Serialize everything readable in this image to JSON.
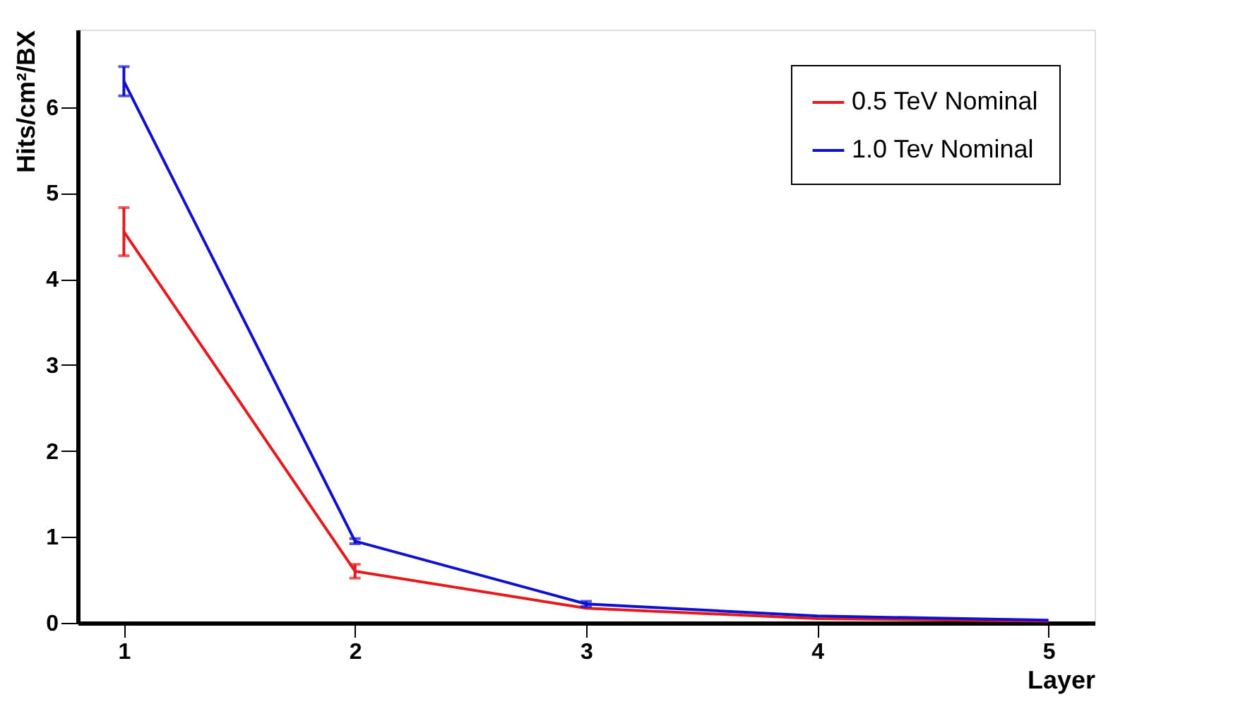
{
  "chart_data": {
    "type": "line",
    "xlabel": "Layer",
    "ylabel": "Hits/cm²/BX",
    "x": [
      1,
      2,
      3,
      4,
      5
    ],
    "xlim": [
      0.8,
      5.2
    ],
    "xticks": [
      1,
      2,
      3,
      4,
      5
    ],
    "ylim": [
      0,
      6.9
    ],
    "yticks": [
      0,
      1,
      2,
      3,
      4,
      5,
      6
    ],
    "series": [
      {
        "name": "0.5 TeV Nominal",
        "color": "#e41a1c",
        "values": [
          4.55,
          0.6,
          0.17,
          0.05,
          0.02
        ],
        "errors": [
          0.28,
          0.08,
          null,
          null,
          null
        ]
      },
      {
        "name": "1.0 Tev Nominal",
        "color": "#1010d0",
        "values": [
          6.3,
          0.95,
          0.22,
          0.08,
          0.03
        ],
        "errors": [
          0.17,
          0.03,
          0.03,
          null,
          null
        ]
      }
    ],
    "legend": "top right",
    "grid": false,
    "marker": "none",
    "line_style": "solid"
  }
}
